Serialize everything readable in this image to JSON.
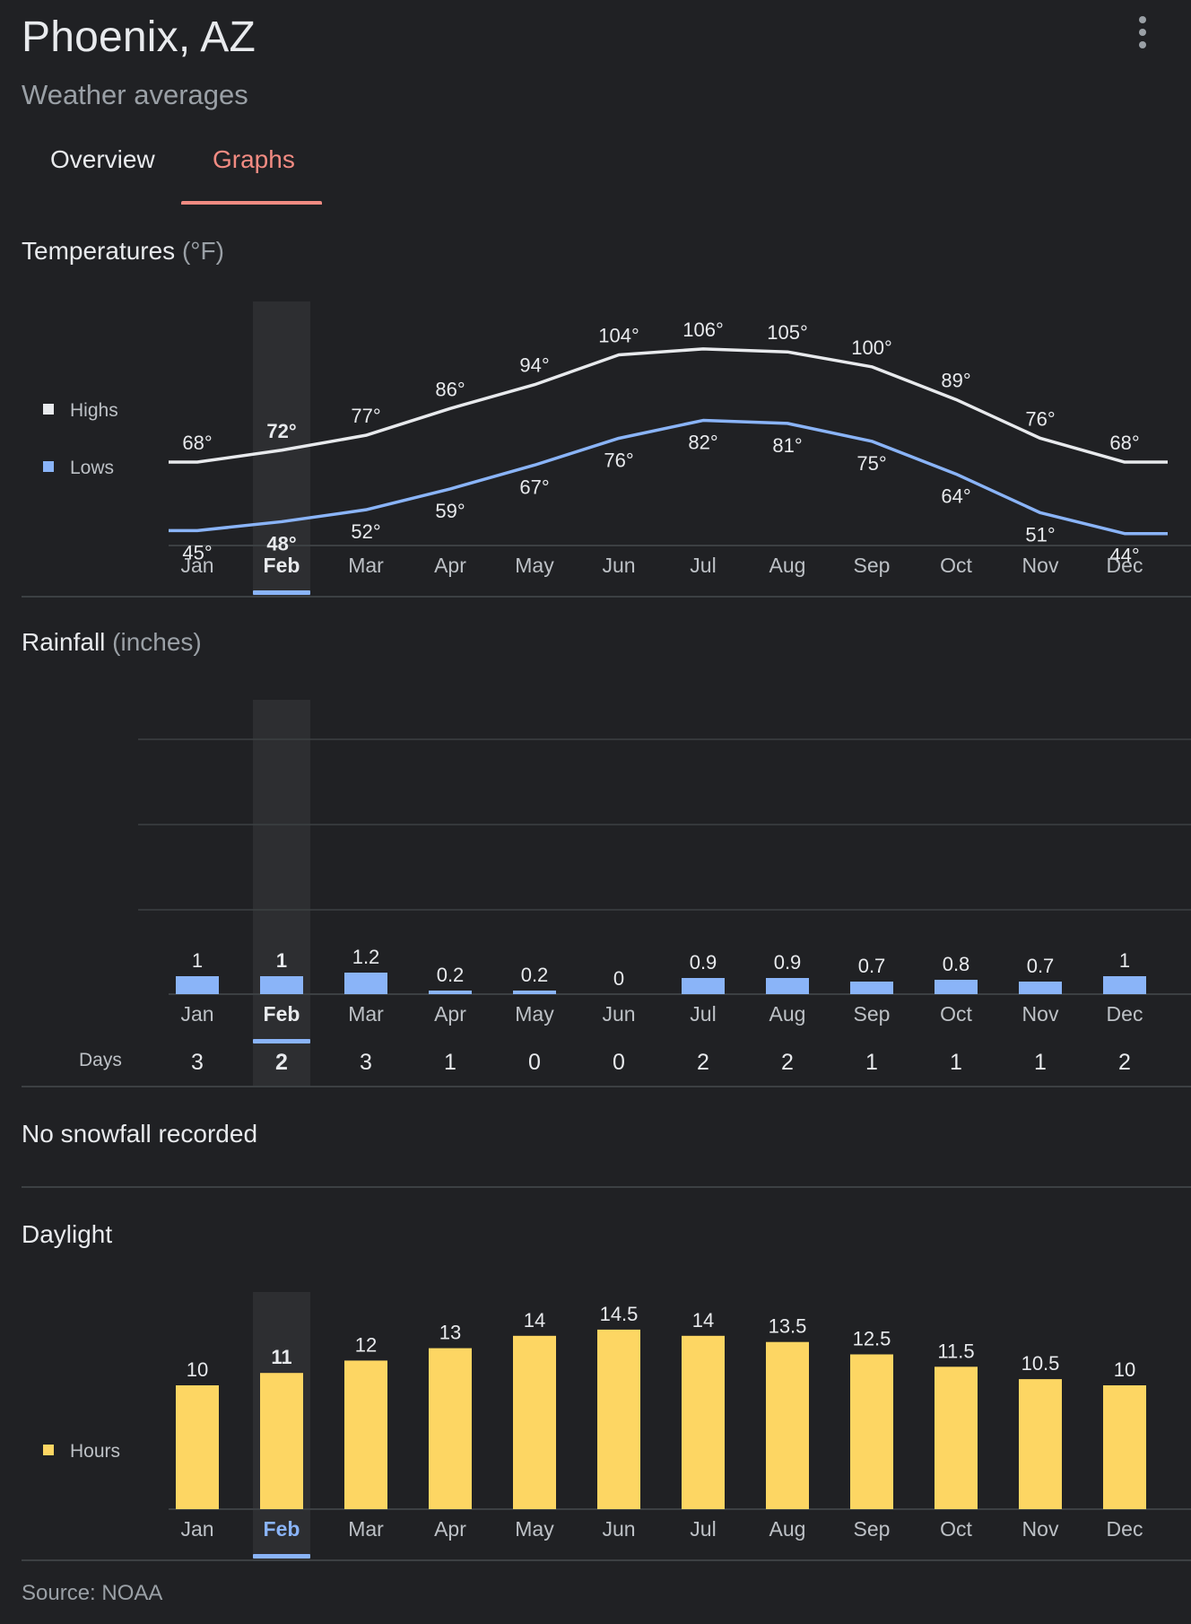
{
  "header": {
    "title": "Phoenix, AZ",
    "subtitle": "Weather averages"
  },
  "menu_icon": "more-vert-icon",
  "tabs": [
    {
      "label": "Overview"
    },
    {
      "label": "Graphs",
      "selected": true
    }
  ],
  "selected_month": "Feb",
  "months": [
    "Jan",
    "Feb",
    "Mar",
    "Apr",
    "May",
    "Jun",
    "Jul",
    "Aug",
    "Sep",
    "Oct",
    "Nov",
    "Dec"
  ],
  "colors": {
    "background": "#202124",
    "accent": "#f28b82",
    "highs": "#e8eaed",
    "lows": "#8ab4f8",
    "rain": "#8ab4f8",
    "daylight": "#fdd663",
    "selected_bar": "#8ab4f8"
  },
  "temperature": {
    "title": "Temperatures",
    "unit": "(°F)",
    "legend": {
      "highs": "Highs",
      "lows": "Lows"
    }
  },
  "rainfall": {
    "title": "Rainfall",
    "unit": "(inches)",
    "days_label": "Days"
  },
  "snowfall": {
    "text": "No snowfall recorded"
  },
  "daylight": {
    "title": "Daylight",
    "legend": "Hours"
  },
  "source": "Source: NOAA",
  "chart_data": [
    {
      "type": "line",
      "title": "Temperatures (°F)",
      "categories": [
        "Jan",
        "Feb",
        "Mar",
        "Apr",
        "May",
        "Jun",
        "Jul",
        "Aug",
        "Sep",
        "Oct",
        "Nov",
        "Dec"
      ],
      "value_suffix": "°",
      "series": [
        {
          "name": "Highs",
          "values": [
            68,
            72,
            77,
            86,
            94,
            104,
            106,
            105,
            100,
            89,
            76,
            68
          ]
        },
        {
          "name": "Lows",
          "values": [
            45,
            48,
            52,
            59,
            67,
            76,
            82,
            81,
            75,
            64,
            51,
            44
          ]
        }
      ],
      "legend": "left"
    },
    {
      "type": "bar",
      "title": "Rainfall (inches)",
      "categories": [
        "Jan",
        "Feb",
        "Mar",
        "Apr",
        "May",
        "Jun",
        "Jul",
        "Aug",
        "Sep",
        "Oct",
        "Nov",
        "Dec"
      ],
      "values": [
        1,
        1,
        1.2,
        0.2,
        0.2,
        0,
        0.9,
        0.9,
        0.7,
        0.8,
        0.7,
        1
      ],
      "ylim": [
        0,
        6
      ],
      "grid": true,
      "days": {
        "label": "Days",
        "values": [
          3,
          2,
          3,
          1,
          0,
          0,
          2,
          2,
          1,
          1,
          1,
          2
        ]
      }
    },
    {
      "type": "bar",
      "title": "Daylight",
      "categories": [
        "Jan",
        "Feb",
        "Mar",
        "Apr",
        "May",
        "Jun",
        "Jul",
        "Aug",
        "Sep",
        "Oct",
        "Nov",
        "Dec"
      ],
      "series": [
        {
          "name": "Hours",
          "values": [
            10,
            11,
            12,
            13,
            14,
            14.5,
            14,
            13.5,
            12.5,
            11.5,
            10.5,
            10
          ]
        }
      ],
      "legend": "left"
    }
  ]
}
